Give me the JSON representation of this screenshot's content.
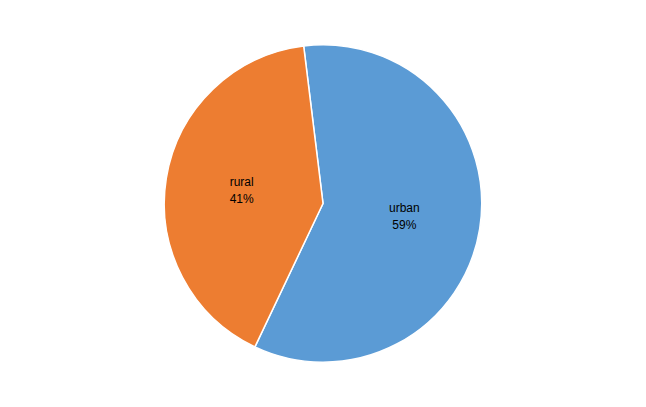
{
  "chart_data": {
    "type": "pie",
    "categories": [
      "urban",
      "rural"
    ],
    "values": [
      59,
      41
    ],
    "value_labels": [
      "59%",
      "41%"
    ],
    "colors": [
      "#5B9BD5",
      "#ED7D31"
    ]
  }
}
